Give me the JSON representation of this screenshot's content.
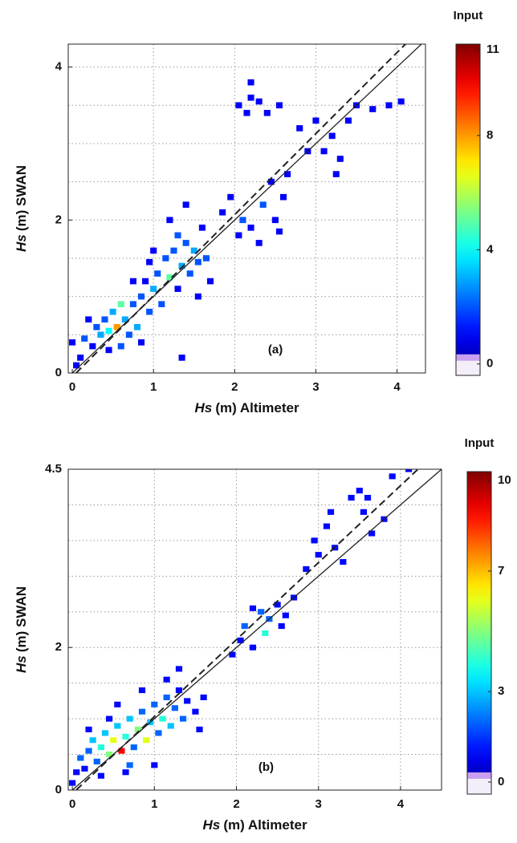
{
  "chart_data": [
    {
      "type": "density_scatter",
      "colormap": "jet",
      "label": "(a)",
      "xlabel_var": "Hs",
      "xlabel": "(m) Altimeter",
      "ylabel_var": "Hs",
      "ylabel": "(m) SWAN",
      "colorbar_title": "Input",
      "clim": [
        -0.4,
        11.2
      ],
      "cticks": [
        0,
        4,
        8,
        11
      ],
      "xlim": [
        -0.05,
        4.35
      ],
      "ylim": [
        0,
        4.3
      ],
      "xticks": [
        0,
        1,
        2,
        3,
        4
      ],
      "yticks": [
        0,
        2,
        4
      ],
      "xgrid": [
        1,
        2,
        3,
        4
      ],
      "ygrid": [
        0.5,
        1,
        1.5,
        2,
        2.5,
        3,
        3.5,
        4
      ],
      "bin_size": 0.08,
      "lines": [
        {
          "style": "solid",
          "slope": 1,
          "intercept": 0
        },
        {
          "style": "dashed",
          "slope": 1.06,
          "intercept": -0.05
        }
      ],
      "x": [
        0.05,
        0.1,
        0.0,
        0.15,
        0.25,
        0.3,
        0.35,
        0.4,
        0.45,
        0.5,
        0.55,
        0.6,
        0.65,
        0.7,
        0.75,
        0.8,
        0.85,
        0.9,
        0.95,
        1.0,
        1.05,
        1.1,
        1.15,
        1.2,
        1.25,
        1.3,
        1.35,
        1.4,
        1.45,
        1.5,
        1.55,
        1.6,
        1.65,
        1.7,
        1.3,
        1.2,
        1.0,
        0.2,
        0.45,
        0.6,
        0.85,
        1.35,
        0.75,
        0.95,
        1.4,
        1.55,
        1.85,
        1.95,
        2.05,
        2.1,
        2.2,
        2.3,
        2.35,
        2.45,
        2.5,
        2.6,
        2.65,
        2.55,
        2.2,
        2.05,
        2.15,
        2.3,
        2.4,
        2.55,
        2.2,
        2.9,
        3.0,
        3.1,
        3.2,
        3.25,
        3.4,
        3.5,
        3.7,
        3.9,
        4.05,
        2.8,
        3.3
      ],
      "y": [
        0.1,
        0.2,
        0.4,
        0.45,
        0.35,
        0.6,
        0.5,
        0.7,
        0.55,
        0.8,
        0.6,
        0.9,
        0.7,
        0.5,
        0.9,
        0.6,
        1.0,
        1.2,
        0.8,
        1.1,
        1.3,
        0.9,
        1.5,
        1.25,
        1.6,
        1.1,
        1.4,
        1.7,
        1.3,
        1.6,
        1.45,
        1.9,
        1.5,
        1.2,
        1.8,
        2.0,
        1.6,
        0.7,
        0.3,
        0.35,
        0.4,
        0.2,
        1.2,
        1.45,
        2.2,
        1.0,
        2.1,
        2.3,
        1.8,
        2.0,
        1.9,
        1.7,
        2.2,
        2.5,
        2.0,
        2.3,
        2.6,
        1.85,
        3.6,
        3.5,
        3.4,
        3.55,
        3.4,
        3.5,
        3.8,
        2.9,
        3.3,
        2.9,
        3.1,
        2.6,
        3.3,
        3.5,
        3.45,
        3.5,
        3.55,
        3.2,
        2.8
      ],
      "counts": [
        1,
        1,
        1,
        2,
        1,
        2,
        3,
        2,
        4,
        3,
        8,
        5,
        3,
        2,
        2,
        3,
        2,
        1,
        2,
        3,
        2,
        2,
        2,
        5,
        2,
        1,
        3,
        2,
        2,
        3,
        2,
        1,
        2,
        1,
        2,
        1,
        1,
        1,
        1,
        2,
        1,
        1,
        1,
        1,
        1,
        1,
        1,
        1,
        1,
        2,
        1,
        1,
        2,
        1,
        1,
        1,
        1,
        1,
        1,
        1,
        1,
        1,
        1,
        1,
        1,
        1,
        1,
        1,
        1,
        1,
        1,
        1,
        1,
        1,
        1,
        1,
        1
      ]
    },
    {
      "type": "density_scatter",
      "colormap": "jet",
      "label": "(b)",
      "xlabel_var": "Hs",
      "xlabel": "(m) Altimeter",
      "ylabel_var": "Hs",
      "ylabel": "(m) SWAN",
      "colorbar_title": "Input",
      "clim": [
        -0.4,
        10.3
      ],
      "cticks": [
        0,
        3,
        7,
        10
      ],
      "xlim": [
        -0.05,
        4.5
      ],
      "ylim": [
        0,
        4.5
      ],
      "xticks": [
        0,
        1,
        2,
        3,
        4
      ],
      "yticks": [
        0,
        2,
        4.5
      ],
      "xgrid": [
        1,
        2,
        3,
        4
      ],
      "ygrid": [
        0.5,
        1,
        1.5,
        2,
        2.5,
        3,
        3.5,
        4,
        4.5
      ],
      "bin_size": 0.08,
      "lines": [
        {
          "style": "solid",
          "slope": 1,
          "intercept": 0
        },
        {
          "style": "dashed",
          "slope": 1.08,
          "intercept": -0.05
        }
      ],
      "x": [
        0.0,
        0.05,
        0.1,
        0.15,
        0.2,
        0.25,
        0.3,
        0.35,
        0.4,
        0.45,
        0.5,
        0.55,
        0.6,
        0.65,
        0.7,
        0.75,
        0.8,
        0.85,
        0.9,
        0.95,
        1.0,
        1.05,
        1.1,
        1.15,
        1.2,
        1.25,
        1.3,
        1.35,
        1.4,
        1.5,
        1.6,
        0.55,
        0.35,
        0.65,
        0.7,
        1.0,
        0.2,
        0.45,
        1.15,
        0.85,
        1.3,
        1.55,
        1.95,
        2.05,
        2.1,
        2.2,
        2.3,
        2.35,
        2.4,
        2.5,
        2.55,
        2.6,
        2.2,
        2.7,
        2.85,
        2.95,
        3.0,
        3.1,
        3.2,
        3.3,
        3.4,
        3.5,
        3.6,
        3.65,
        3.8,
        3.9,
        4.1,
        3.15,
        3.55
      ],
      "y": [
        0.1,
        0.25,
        0.45,
        0.3,
        0.55,
        0.7,
        0.4,
        0.6,
        0.8,
        0.5,
        0.7,
        0.9,
        0.55,
        0.75,
        1.0,
        0.6,
        0.85,
        1.1,
        0.7,
        0.95,
        1.2,
        0.8,
        1.0,
        1.3,
        0.9,
        1.15,
        1.4,
        1.0,
        1.25,
        1.1,
        1.3,
        1.2,
        0.2,
        0.25,
        0.35,
        0.35,
        0.85,
        1.0,
        1.55,
        1.4,
        1.7,
        0.85,
        1.9,
        2.1,
        2.3,
        2.0,
        2.5,
        2.2,
        2.4,
        2.6,
        2.3,
        2.45,
        2.55,
        2.7,
        3.1,
        3.5,
        3.3,
        3.7,
        3.4,
        3.2,
        4.1,
        4.2,
        4.1,
        3.6,
        3.8,
        4.4,
        4.5,
        3.9,
        3.9
      ],
      "counts": [
        1,
        1,
        2,
        1,
        2,
        3,
        2,
        4,
        3,
        5,
        6,
        3,
        9,
        4,
        3,
        2,
        5,
        2,
        6,
        3,
        2,
        2,
        4,
        2,
        3,
        2,
        1,
        2,
        1,
        1,
        1,
        1,
        1,
        1,
        2,
        1,
        1,
        1,
        1,
        1,
        1,
        1,
        1,
        1,
        2,
        1,
        2,
        4,
        2,
        1,
        1,
        1,
        1,
        1,
        1,
        1,
        1,
        1,
        1,
        1,
        1,
        1,
        1,
        1,
        1,
        1,
        1,
        1,
        1
      ]
    }
  ]
}
